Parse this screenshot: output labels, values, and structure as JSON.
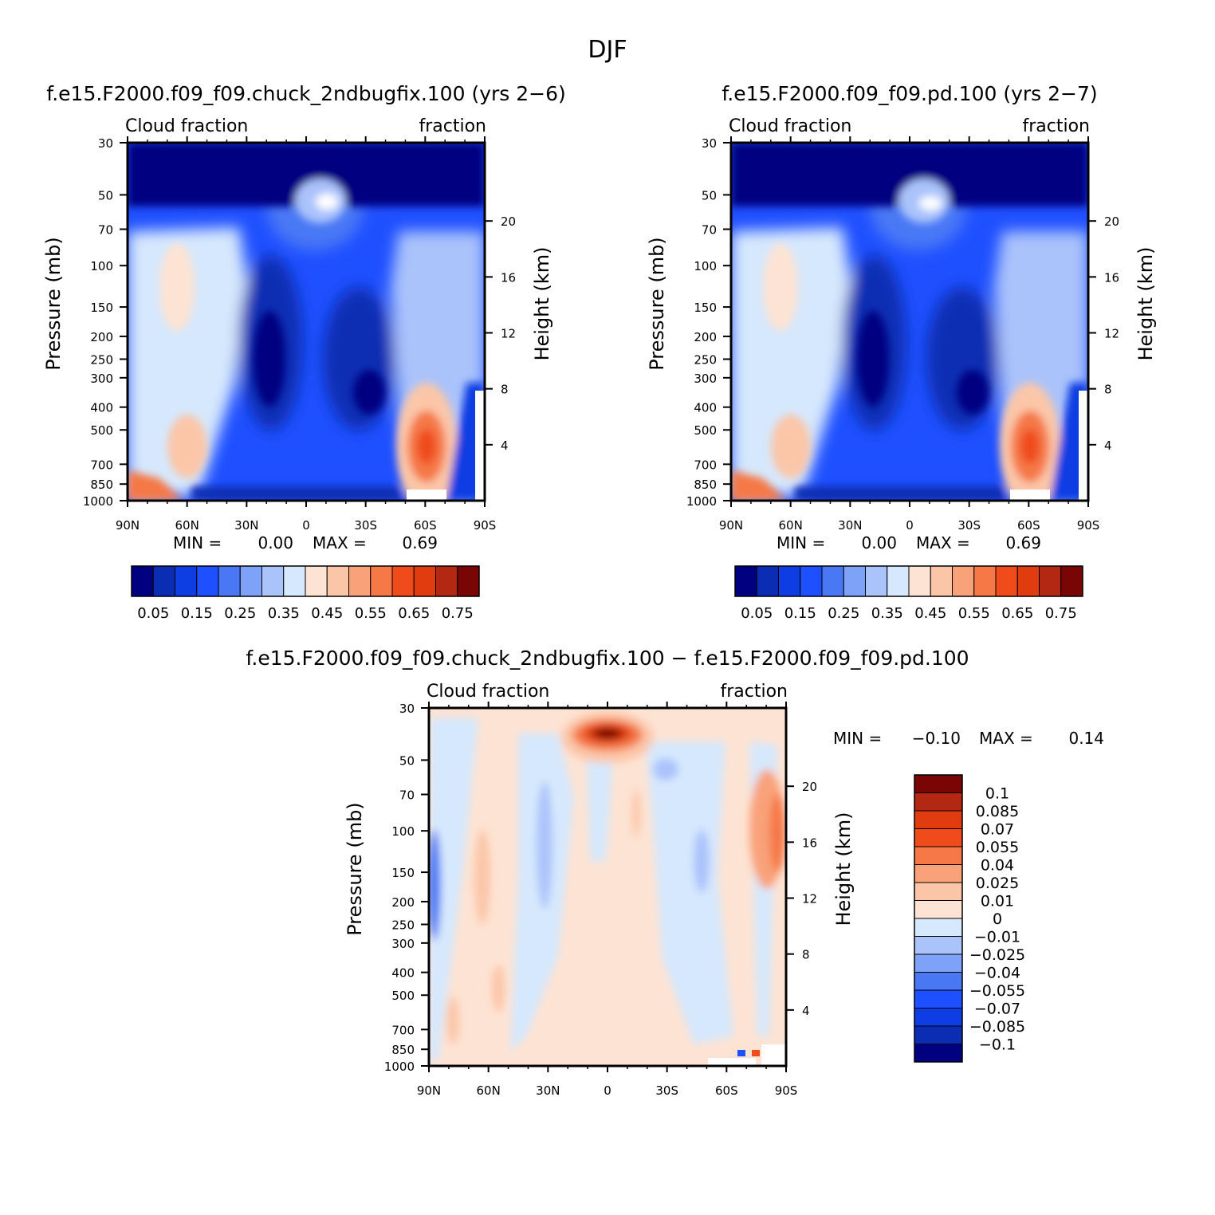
{
  "figure": {
    "title": "DJF",
    "colors": {
      "abs_scale": [
        "#000080",
        "#0a2db3",
        "#0e3ee3",
        "#1f50ff",
        "#4a78f5",
        "#7da2f7",
        "#aac3fb",
        "#d6e8fd",
        "#fde3d3",
        "#fbc6a8",
        "#f9a27a",
        "#f57846",
        "#ef4b1b",
        "#e03c10",
        "#b32812",
        "#7a0505"
      ],
      "diff_scale": [
        "#000080",
        "#0a2db3",
        "#0e3ee3",
        "#1f50ff",
        "#4a78f5",
        "#7da2f7",
        "#aac3fb",
        "#d6e8fd",
        "#fde3d3",
        "#fbc6a8",
        "#f9a27a",
        "#f57846",
        "#ef4b1b",
        "#e03c10",
        "#b32812",
        "#7a0505"
      ]
    }
  },
  "panels": [
    {
      "title": "f.e15.F2000.f09_f09.chuck_2ndbugfix.100 (yrs 2−6)",
      "left_label": "Cloud fraction",
      "right_label": "fraction",
      "stats": {
        "min_label": "MIN =",
        "min_value": "0.00",
        "max_label": "MAX =",
        "max_value": "0.69"
      }
    },
    {
      "title": "f.e15.F2000.f09_f09.pd.100 (yrs 2−7)",
      "left_label": "Cloud fraction",
      "right_label": "fraction",
      "stats": {
        "min_label": "MIN =",
        "min_value": "0.00",
        "max_label": "MAX =",
        "max_value": "0.69"
      }
    },
    {
      "title": "f.e15.F2000.f09_f09.chuck_2ndbugfix.100 − f.e15.F2000.f09_f09.pd.100",
      "left_label": "Cloud fraction",
      "right_label": "fraction",
      "stats": {
        "min_label": "MIN =",
        "min_value": "−0.10",
        "max_label": "MAX =",
        "max_value": "0.14"
      }
    }
  ],
  "axes": {
    "x_ticks": [
      "90N",
      "60N",
      "30N",
      "0",
      "30S",
      "60S",
      "90S"
    ],
    "x_values": [
      90,
      60,
      30,
      0,
      -30,
      -60,
      -90
    ],
    "y_label": "Pressure (mb)",
    "y_ticks": [
      "30",
      "50",
      "70",
      "100",
      "150",
      "200",
      "250",
      "300",
      "400",
      "500",
      "700",
      "850",
      "1000"
    ],
    "y_values": [
      30,
      50,
      70,
      100,
      150,
      200,
      250,
      300,
      400,
      500,
      700,
      850,
      1000
    ],
    "y_scale": "log",
    "y2_label": "Height (km)",
    "y2_ticks": [
      "20",
      "16",
      "12",
      "8",
      "4"
    ],
    "y2_values": [
      20,
      16,
      12,
      8,
      4
    ]
  },
  "colorbars": {
    "abs_labels": [
      "0.05",
      "0.15",
      "0.25",
      "0.35",
      "0.45",
      "0.55",
      "0.65",
      "0.75"
    ],
    "diff_labels": [
      "0.1",
      "0.085",
      "0.07",
      "0.055",
      "0.04",
      "0.025",
      "0.01",
      "0",
      "−0.01",
      "−0.025",
      "−0.04",
      "−0.055",
      "−0.07",
      "−0.085",
      "−0.1"
    ]
  },
  "chart_data": [
    {
      "type": "heatmap",
      "title": "f.e15.F2000.f09_f09.chuck_2ndbugfix.100 (yrs 2−6)",
      "xlabel": "",
      "ylabel": "Pressure (mb)",
      "y2label": "Height (km)",
      "xlim": [
        90,
        -90
      ],
      "ylim": [
        1000,
        30
      ],
      "y_scale": "log",
      "min": 0.0,
      "max": 0.69,
      "levels": [
        0.05,
        0.1,
        0.15,
        0.2,
        0.25,
        0.3,
        0.35,
        0.4,
        0.45,
        0.5,
        0.55,
        0.6,
        0.65,
        0.7,
        0.75
      ]
    },
    {
      "type": "heatmap",
      "title": "f.e15.F2000.f09_f09.pd.100 (yrs 2−7)",
      "xlabel": "",
      "ylabel": "Pressure (mb)",
      "y2label": "Height (km)",
      "xlim": [
        90,
        -90
      ],
      "ylim": [
        1000,
        30
      ],
      "y_scale": "log",
      "min": 0.0,
      "max": 0.69,
      "levels": [
        0.05,
        0.1,
        0.15,
        0.2,
        0.25,
        0.3,
        0.35,
        0.4,
        0.45,
        0.5,
        0.55,
        0.6,
        0.65,
        0.7,
        0.75
      ]
    },
    {
      "type": "heatmap",
      "title": "f.e15.F2000.f09_f09.chuck_2ndbugfix.100 − f.e15.F2000.f09_f09.pd.100",
      "xlabel": "",
      "ylabel": "Pressure (mb)",
      "y2label": "Height (km)",
      "xlim": [
        90,
        -90
      ],
      "ylim": [
        1000,
        30
      ],
      "y_scale": "log",
      "min": -0.1,
      "max": 0.14,
      "levels": [
        -0.1,
        -0.085,
        -0.07,
        -0.055,
        -0.04,
        -0.025,
        -0.01,
        0,
        0.01,
        0.025,
        0.04,
        0.055,
        0.07,
        0.085,
        0.1
      ]
    }
  ]
}
